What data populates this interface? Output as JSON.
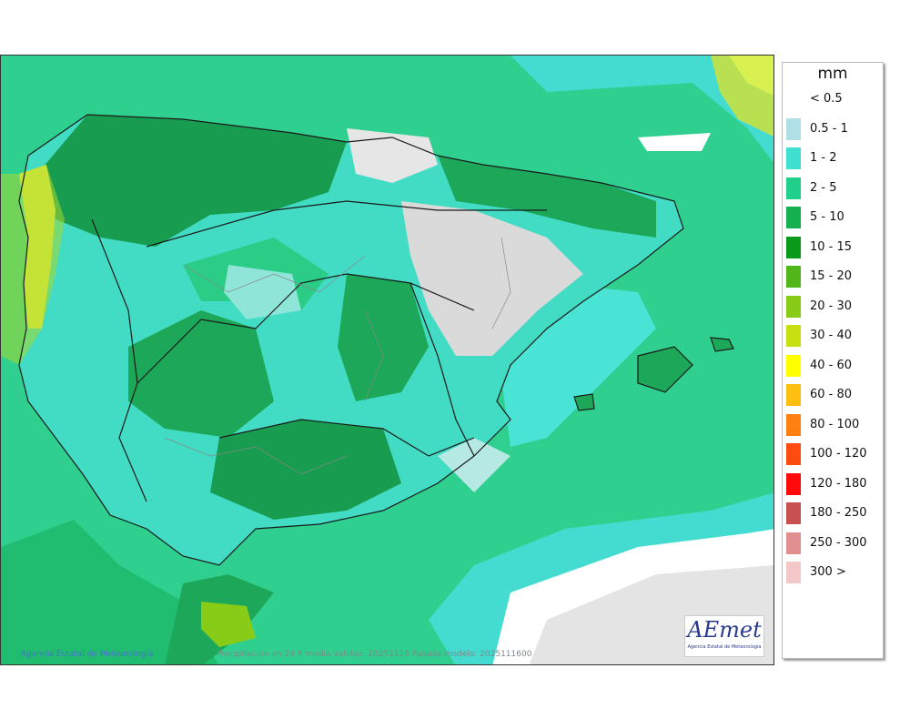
{
  "map": {
    "credit": "Agencia Estatal de Meteorología",
    "validity": "Precipitación en 24 h media  Validez: 20251116 Pasada modelo: 2025111600",
    "logo_text": "AEmet",
    "logo_sub": "Agencia Estatal de Meteorología"
  },
  "legend": {
    "unit": "mm",
    "items": [
      {
        "label": "< 0.5",
        "color": "#ffffff"
      },
      {
        "label": "0.5 - 1",
        "color": "#b0e0e6"
      },
      {
        "label": "1 - 2",
        "color": "#40e0d0"
      },
      {
        "label": "2 - 5",
        "color": "#1fcf8a"
      },
      {
        "label": "5 - 10",
        "color": "#15b050"
      },
      {
        "label": "10 - 15",
        "color": "#0b9a1a"
      },
      {
        "label": "15 - 20",
        "color": "#52b51a"
      },
      {
        "label": "20 - 30",
        "color": "#88cc18"
      },
      {
        "label": "30 - 40",
        "color": "#c8e010"
      },
      {
        "label": "40 - 60",
        "color": "#ffff00"
      },
      {
        "label": "60 - 80",
        "color": "#ffbf10"
      },
      {
        "label": "80 - 100",
        "color": "#ff8010"
      },
      {
        "label": "100 - 120",
        "color": "#ff4a10"
      },
      {
        "label": "120 - 180",
        "color": "#ff0a0a"
      },
      {
        "label": "180 - 250",
        "color": "#c85050"
      },
      {
        "label": "250 - 300",
        "color": "#e09090"
      },
      {
        "label": "300 >",
        "color": "#f4c8c8"
      }
    ]
  }
}
